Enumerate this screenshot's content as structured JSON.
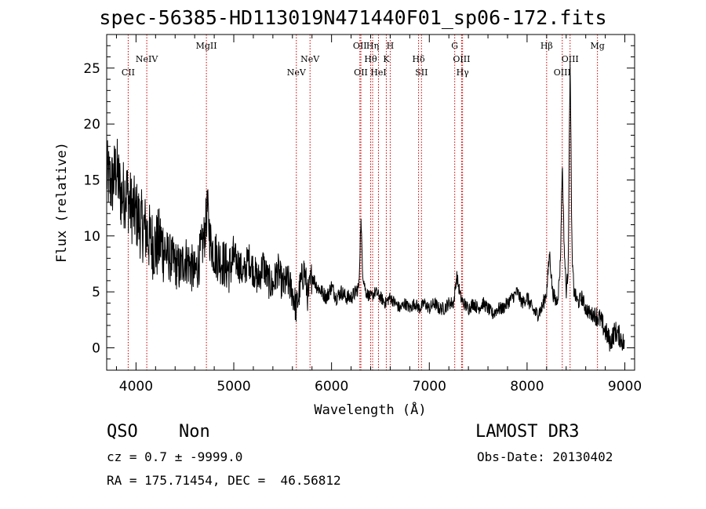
{
  "title": "spec-56385-HD113019N471440F01_sp06-172.fits",
  "footer": {
    "class": "QSO",
    "subclass": "Non",
    "survey": "LAMOST DR3",
    "cz": "cz = 0.7 ± -9999.0",
    "obs_date": "Obs-Date: 20130402",
    "radec": "RA = 175.71454, DEC =  46.56812"
  },
  "colors": {
    "line": "#000000",
    "marker": "#cc0000",
    "background": "#ffffff"
  },
  "chart_data": {
    "type": "line",
    "title": "spec-56385-HD113019N471440F01_sp06-172.fits",
    "xlabel": "Wavelength (Å)",
    "ylabel": "Flux (relative)",
    "xlim": [
      3700,
      9100
    ],
    "ylim": [
      -2,
      28
    ],
    "xticks": [
      4000,
      5000,
      6000,
      7000,
      8000,
      9000
    ],
    "yticks": [
      0,
      5,
      10,
      15,
      20,
      25
    ],
    "series": [
      {
        "x": [
          3700,
          3750,
          3800,
          3850,
          3900,
          3950,
          4000,
          4050,
          4100,
          4150,
          4200,
          4250,
          4300,
          4350,
          4400,
          4450,
          4500,
          4550,
          4600,
          4650,
          4700,
          4730,
          4760,
          4800,
          4850,
          4900,
          4950,
          5000,
          5050,
          5100,
          5150,
          5200,
          5250,
          5300,
          5350,
          5400,
          5450,
          5500,
          5550,
          5600,
          5640,
          5680,
          5720,
          5760,
          5800,
          5850,
          5900,
          5950,
          6000,
          6050,
          6100,
          6150,
          6200,
          6250,
          6280,
          6300,
          6320,
          6350,
          6400,
          6450,
          6500,
          6550,
          6600,
          6650,
          6700,
          6750,
          6800,
          6850,
          6900,
          6950,
          7000,
          7050,
          7100,
          7150,
          7200,
          7250,
          7280,
          7320,
          7350,
          7400,
          7450,
          7500,
          7550,
          7600,
          7650,
          7700,
          7750,
          7800,
          7850,
          7900,
          7950,
          8000,
          8050,
          8100,
          8150,
          8200,
          8230,
          8260,
          8300,
          8320,
          8340,
          8360,
          8380,
          8400,
          8420,
          8440,
          8460,
          8480,
          8520,
          8560,
          8600,
          8650,
          8700,
          8750,
          8800,
          8850,
          8900,
          8950,
          9000
        ],
        "y": [
          15.5,
          14.5,
          16,
          13.5,
          14,
          12.5,
          12,
          11,
          10.5,
          9.5,
          9,
          9.5,
          8.5,
          8,
          7.5,
          7,
          8,
          7.5,
          6.5,
          8,
          10,
          12.5,
          9.5,
          8.5,
          8,
          7.5,
          7,
          8,
          7.5,
          6.5,
          8,
          7,
          6,
          7.5,
          6,
          5.5,
          7,
          5.5,
          6,
          5,
          3.5,
          5.5,
          7,
          4.5,
          6.5,
          5.5,
          5,
          4.5,
          5.5,
          4.5,
          5,
          4.5,
          4.5,
          5,
          5.5,
          11.5,
          6.5,
          5,
          4.5,
          5,
          4.5,
          4,
          4.5,
          4,
          3.5,
          4,
          3.5,
          4,
          3.5,
          4,
          3.5,
          4,
          3.5,
          3.5,
          4,
          4,
          6.5,
          4.5,
          4,
          3.5,
          4,
          3.5,
          4,
          3.5,
          3,
          3.5,
          3.5,
          4,
          4.5,
          5,
          4,
          4.5,
          3.5,
          3,
          3.5,
          5,
          8.5,
          5,
          4,
          5,
          7.5,
          16.5,
          9,
          5,
          7,
          26,
          8,
          5,
          4,
          4.5,
          3.5,
          3,
          3,
          2.5,
          1.5,
          0.5,
          1.5,
          1,
          0.2
        ]
      }
    ],
    "lines": [
      {
        "name": "CII",
        "wavelength": 3920,
        "row": 3
      },
      {
        "name": "NeIV",
        "wavelength": 4110,
        "row": 2
      },
      {
        "name": "MgII",
        "wavelength": 4720,
        "row": 1
      },
      {
        "name": "NeV",
        "wavelength": 5640,
        "row": 3
      },
      {
        "name": "NeV",
        "wavelength": 5780,
        "row": 2
      },
      {
        "name": "OII",
        "wavelength": 6290,
        "row": 1
      },
      {
        "name": "OII",
        "wavelength": 6300,
        "row": 3
      },
      {
        "name": "Hη",
        "wavelength": 6420,
        "row": 1
      },
      {
        "name": "Hθ",
        "wavelength": 6400,
        "row": 2
      },
      {
        "name": "HeI",
        "wavelength": 6480,
        "row": 3
      },
      {
        "name": "K",
        "wavelength": 6560,
        "row": 2
      },
      {
        "name": "H",
        "wavelength": 6600,
        "row": 1
      },
      {
        "name": "Hδ",
        "wavelength": 6890,
        "row": 2
      },
      {
        "name": "SII",
        "wavelength": 6920,
        "row": 3
      },
      {
        "name": "G",
        "wavelength": 7260,
        "row": 1
      },
      {
        "name": "OIII",
        "wavelength": 7330,
        "row": 2
      },
      {
        "name": "Hγ",
        "wavelength": 7340,
        "row": 3
      },
      {
        "name": "Hβ",
        "wavelength": 8200,
        "row": 1
      },
      {
        "name": "OIII",
        "wavelength": 8360,
        "row": 3
      },
      {
        "name": "OIII",
        "wavelength": 8440,
        "row": 2
      },
      {
        "name": "Mg",
        "wavelength": 8720,
        "row": 1
      }
    ]
  }
}
